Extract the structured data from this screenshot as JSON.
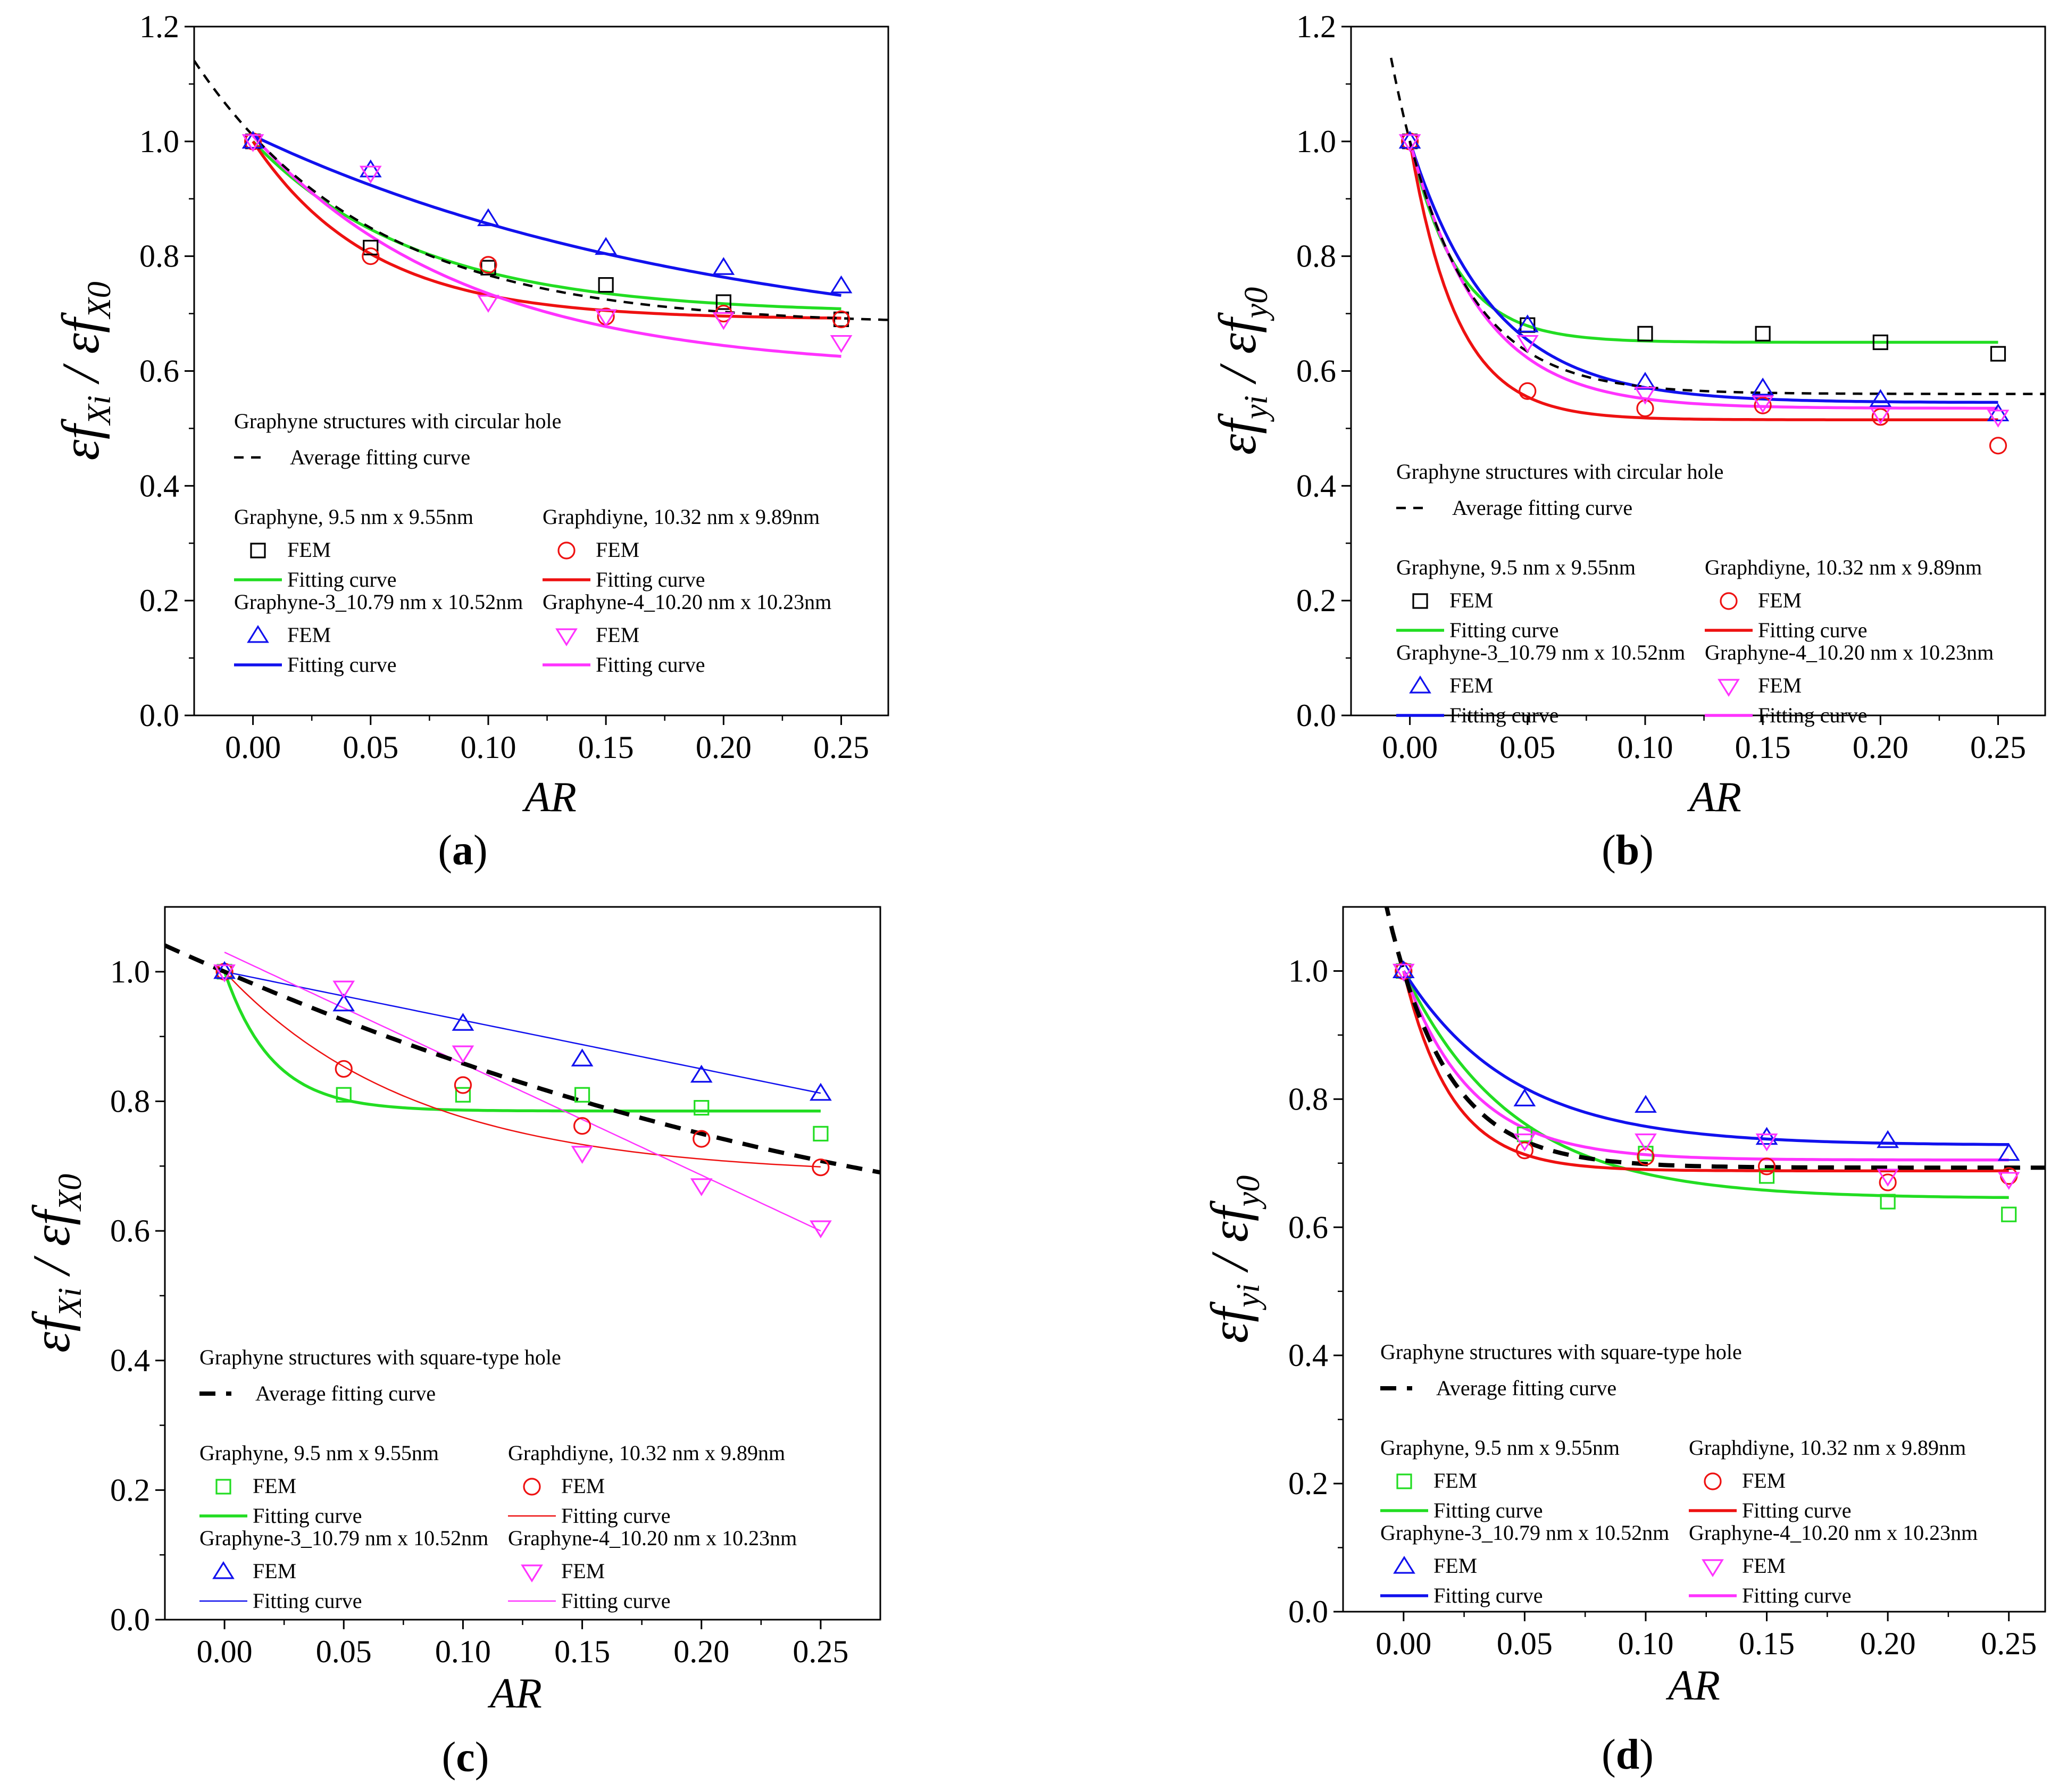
{
  "colors": {
    "graphyne": "#22dd22",
    "graphdiyne": "#ee1111",
    "graphyne3": "#1111ee",
    "graphyne4": "#ff33ff",
    "average": "#000000",
    "graphyne_circ_fem": "#000000"
  },
  "chart_data": [
    {
      "id": "a",
      "type": "scatter",
      "subtitle": "(a)",
      "xlabel": "AR",
      "ylabel": {
        "main": "εf",
        "sub1": "Xi",
        "mid": " / εf",
        "sub2": "X0"
      },
      "xlim": [
        -0.025,
        0.27
      ],
      "ylim": [
        0,
        1.2
      ],
      "xticks": [
        "0.00",
        "0.05",
        "0.10",
        "0.15",
        "0.20",
        "0.25"
      ],
      "yticks": [
        "0.0",
        "0.2",
        "0.4",
        "0.6",
        "0.8",
        "1.0",
        "1.2"
      ],
      "legend_title": "Graphyne structures with circular hole",
      "average_label": "Average fitting curve",
      "x": [
        0,
        0.05,
        0.1,
        0.15,
        0.2,
        0.25
      ],
      "series": [
        {
          "name": "Graphyne,  9.5 nm x 9.55nm",
          "fem_label": "FEM",
          "fit_label": "Fitting curve",
          "marker": "square",
          "values": [
            1.0,
            0.815,
            0.78,
            0.75,
            0.72,
            0.69
          ],
          "fit": {
            "kind": "exp",
            "y0": 0.7,
            "A": 0.3,
            "t": 0.07
          }
        },
        {
          "name": "Graphdiyne, 10.32 nm x 9.89nm",
          "fem_label": "FEM",
          "fit_label": "Fitting curve",
          "marker": "circle",
          "values": [
            1.0,
            0.8,
            0.785,
            0.695,
            0.7,
            0.69
          ],
          "fit": {
            "kind": "exp",
            "y0": 0.69,
            "A": 0.31,
            "t": 0.05
          }
        },
        {
          "name": "Graphyne-3_10.79 nm x 10.52nm",
          "fem_label": "FEM",
          "fit_label": "Fitting curve",
          "marker": "triangle-up",
          "values": [
            1.0,
            0.95,
            0.865,
            0.815,
            0.78,
            0.748
          ],
          "fit": {
            "kind": "exp",
            "y0": 0.62,
            "A": 0.39,
            "t": 0.2
          }
        },
        {
          "name": "Graphyne-4_10.20 nm x 10.23nm",
          "fem_label": "FEM",
          "fit_label": "Fitting curve",
          "marker": "triangle-down",
          "values": [
            1.0,
            0.945,
            0.72,
            0.695,
            0.69,
            0.65
          ],
          "fit": {
            "kind": "exp",
            "y0": 0.6,
            "A": 0.41,
            "t": 0.09
          }
        }
      ],
      "average": {
        "y0": 0.68,
        "A": 0.33,
        "t": 0.075,
        "x_from": -0.025,
        "x_to": 0.27
      }
    },
    {
      "id": "b",
      "type": "scatter",
      "subtitle": "(b)",
      "xlabel": "AR",
      "ylabel": {
        "main": "εf",
        "sub1": "yi",
        "mid": " / εf",
        "sub2": "y0"
      },
      "xlim": [
        -0.025,
        0.27
      ],
      "ylim": [
        0,
        1.2
      ],
      "xticks": [
        "0.00",
        "0.05",
        "0.10",
        "0.15",
        "0.20",
        "0.25"
      ],
      "yticks": [
        "0.0",
        "0.2",
        "0.4",
        "0.6",
        "0.8",
        "1.0",
        "1.2"
      ],
      "legend_title": "Graphyne structures with circular hole",
      "average_label": "Average fitting curve",
      "x": [
        0,
        0.05,
        0.1,
        0.15,
        0.2,
        0.25
      ],
      "series": [
        {
          "name": "Graphyne,  9.5 nm x 9.55nm",
          "fem_label": "FEM",
          "fit_label": "Fitting curve",
          "marker": "square",
          "values": [
            1.0,
            0.68,
            0.665,
            0.665,
            0.65,
            0.63
          ],
          "fit": {
            "kind": "exp",
            "y0": 0.65,
            "A": 0.35,
            "t": 0.02
          }
        },
        {
          "name": "Graphdiyne, 10.32 nm x 9.89nm",
          "fem_label": "FEM",
          "fit_label": "Fitting curve",
          "marker": "circle",
          "values": [
            1.0,
            0.565,
            0.535,
            0.54,
            0.52,
            0.47
          ],
          "fit": {
            "kind": "exp",
            "y0": 0.515,
            "A": 0.485,
            "t": 0.02
          }
        },
        {
          "name": "Graphyne-3_10.79 nm x 10.52nm",
          "fem_label": "FEM",
          "fit_label": "Fitting curve",
          "marker": "triangle-up",
          "values": [
            1.0,
            0.68,
            0.58,
            0.57,
            0.55,
            0.525
          ],
          "fit": {
            "kind": "exp",
            "y0": 0.545,
            "A": 0.455,
            "t": 0.035
          }
        },
        {
          "name": "Graphyne-4_10.20 nm x 10.23nm",
          "fem_label": "FEM",
          "fit_label": "Fitting curve",
          "marker": "triangle-down",
          "values": [
            1.0,
            0.65,
            0.56,
            0.545,
            0.525,
            0.52
          ],
          "fit": {
            "kind": "exp",
            "y0": 0.535,
            "A": 0.465,
            "t": 0.03
          }
        }
      ],
      "average": {
        "y0": 0.56,
        "A": 0.44,
        "t": 0.028,
        "x_from": -0.008,
        "x_to": 0.27
      }
    },
    {
      "id": "c",
      "type": "scatter",
      "subtitle": "(c)",
      "xlabel": "AR",
      "ylabel": {
        "main": "εf",
        "sub1": "Xi",
        "mid": " / εf",
        "sub2": "X0"
      },
      "xlim": [
        -0.025,
        0.275
      ],
      "ylim": [
        0,
        1.1
      ],
      "xticks": [
        "0.00",
        "0.05",
        "0.10",
        "0.15",
        "0.20",
        "0.25"
      ],
      "yticks": [
        "0.0",
        "0.2",
        "0.4",
        "0.6",
        "0.8",
        "1.0"
      ],
      "legend_title": "Graphyne structures with square-type hole",
      "average_label": "Average fitting curve",
      "x": [
        0,
        0.05,
        0.1,
        0.15,
        0.2,
        0.25
      ],
      "series": [
        {
          "name": "Graphyne,  9.5 nm x 9.55nm",
          "fem_label": "FEM",
          "fit_label": "Fitting curve",
          "marker": "square",
          "values": [
            1.0,
            0.81,
            0.81,
            0.81,
            0.79,
            0.75
          ],
          "fit": {
            "kind": "exp",
            "y0": 0.785,
            "A": 0.215,
            "t": 0.02
          }
        },
        {
          "name": "Graphdiyne, 10.32 nm x 9.89nm",
          "fem_label": "FEM",
          "fit_label": "Fitting curve",
          "marker": "circle",
          "values": [
            1.0,
            0.85,
            0.825,
            0.762,
            0.742,
            0.698
          ],
          "fit": {
            "kind": "exp",
            "y0": 0.685,
            "A": 0.315,
            "t": 0.08
          }
        },
        {
          "name": "Graphyne-3_10.79 nm x 10.52nm",
          "fem_label": "FEM",
          "fit_label": "Fitting curve",
          "marker": "triangle-up",
          "values": [
            1.0,
            0.95,
            0.92,
            0.865,
            0.84,
            0.812
          ],
          "fit": {
            "kind": "poly",
            "c": [
              1.0,
              -0.75
            ]
          }
        },
        {
          "name": "Graphyne-4_10.20 nm x 10.23nm",
          "fem_label": "FEM",
          "fit_label": "Fitting curve",
          "marker": "triangle-down",
          "values": [
            1.0,
            0.975,
            0.875,
            0.72,
            0.67,
            0.605
          ],
          "fit": {
            "kind": "poly",
            "c": [
              1.03,
              -1.72
            ]
          }
        }
      ],
      "average": {
        "kind": "poly",
        "c": [
          1.0,
          -1.58,
          1.65
        ],
        "x_from": -0.025,
        "x_to": 0.275
      }
    },
    {
      "id": "d",
      "type": "scatter",
      "subtitle": "(d)",
      "xlabel": "AR",
      "ylabel": {
        "main": "εf",
        "sub1": "yi",
        "mid": " / εf",
        "sub2": "y0"
      },
      "xlim": [
        -0.025,
        0.265
      ],
      "ylim": [
        0,
        1.1
      ],
      "xticks": [
        "0.00",
        "0.05",
        "0.10",
        "0.15",
        "0.20",
        "0.25"
      ],
      "yticks": [
        "0.0",
        "0.2",
        "0.4",
        "0.6",
        "0.8",
        "1.0"
      ],
      "legend_title": "Graphyne structures with square-type hole",
      "average_label": "Average fitting curve",
      "x": [
        0,
        0.05,
        0.1,
        0.15,
        0.2,
        0.25
      ],
      "series": [
        {
          "name": "Graphyne,  9.5 nm x 9.55nm",
          "fem_label": "FEM",
          "fit_label": "Fitting curve",
          "marker": "square",
          "values": [
            1.0,
            0.745,
            0.715,
            0.68,
            0.64,
            0.62
          ],
          "fit": {
            "kind": "exp",
            "y0": 0.645,
            "A": 0.355,
            "t": 0.045
          }
        },
        {
          "name": "Graphdiyne, 10.32 nm x 9.89nm",
          "fem_label": "FEM",
          "fit_label": "Fitting curve",
          "marker": "circle",
          "values": [
            1.0,
            0.72,
            0.71,
            0.695,
            0.67,
            0.68
          ],
          "fit": {
            "kind": "exp",
            "y0": 0.688,
            "A": 0.312,
            "t": 0.02
          }
        },
        {
          "name": "Graphyne-3_10.79 nm x 10.52nm",
          "fem_label": "FEM",
          "fit_label": "Fitting curve",
          "marker": "triangle-up",
          "values": [
            1.0,
            0.8,
            0.79,
            0.74,
            0.735,
            0.715
          ],
          "fit": {
            "kind": "exp",
            "y0": 0.728,
            "A": 0.272,
            "t": 0.045
          }
        },
        {
          "name": "Graphyne-4_10.20 nm x 10.23nm",
          "fem_label": "FEM",
          "fit_label": "Fitting curve",
          "marker": "triangle-down",
          "values": [
            1.0,
            0.735,
            0.735,
            0.735,
            0.68,
            0.675
          ],
          "fit": {
            "kind": "exp",
            "y0": 0.705,
            "A": 0.295,
            "t": 0.028
          }
        }
      ],
      "average": {
        "y0": 0.693,
        "A": 0.307,
        "t": 0.025,
        "x_from": -0.01,
        "x_to": 0.265
      }
    }
  ]
}
